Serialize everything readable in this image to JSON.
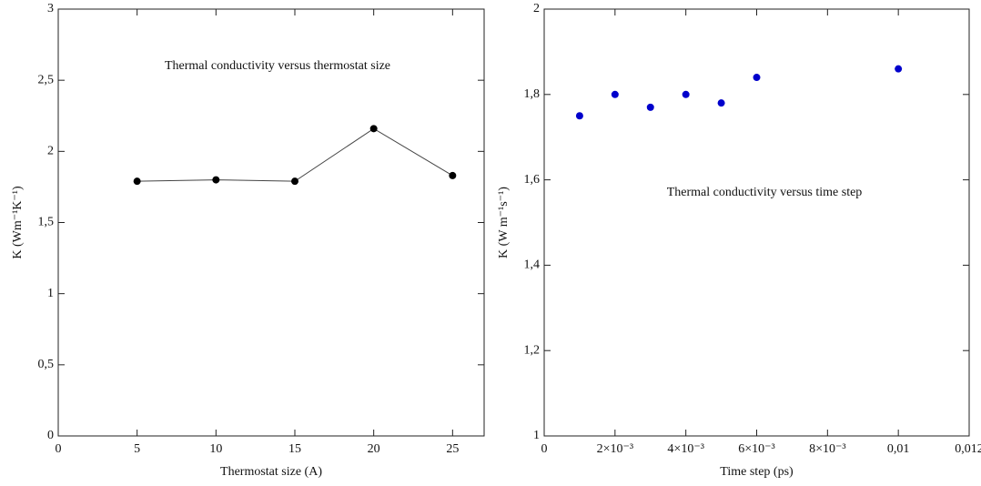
{
  "chart_data": [
    {
      "type": "line",
      "annotation": "Thermal conductivity versus thermostat size",
      "x_label": "Thermostat size (A)",
      "y_label": "K (Wm⁻¹K⁻¹)",
      "x": [
        5,
        10,
        15,
        20,
        25
      ],
      "values": [
        1.79,
        1.8,
        1.79,
        2.16,
        1.83
      ],
      "color": "#000000",
      "xlim": [
        0,
        27
      ],
      "xticks": [
        0,
        5,
        10,
        15,
        20,
        25
      ],
      "ylim": [
        0,
        3
      ],
      "yticks": [
        0,
        {
          "value": 0.5,
          "label": "0,5"
        },
        1,
        {
          "value": 1.5,
          "label": "1,5"
        },
        2,
        {
          "value": 2.5,
          "label": "2,5"
        },
        3
      ]
    },
    {
      "type": "scatter",
      "annotation": "Thermal conductivity versus time step",
      "x_label": "Time step (ps)",
      "y_label": "K (W m⁻¹s⁻¹)",
      "x": [
        0.001,
        0.002,
        0.003,
        0.004,
        0.005,
        0.006,
        0.01
      ],
      "values": [
        1.75,
        1.8,
        1.77,
        1.8,
        1.78,
        1.84,
        1.86
      ],
      "color": "#0000cc",
      "xlim": [
        0,
        0.012
      ],
      "xticks": [
        0,
        {
          "value": 0.002,
          "label": "2×10⁻³"
        },
        {
          "value": 0.004,
          "label": "4×10⁻³"
        },
        {
          "value": 0.006,
          "label": "6×10⁻³"
        },
        {
          "value": 0.008,
          "label": "8×10⁻³"
        },
        {
          "value": 0.01,
          "label": "0,01"
        },
        {
          "value": 0.012,
          "label": "0,012"
        }
      ],
      "ylim": [
        1,
        2
      ],
      "yticks": [
        1,
        {
          "value": 1.2,
          "label": "1,2"
        },
        {
          "value": 1.4,
          "label": "1,4"
        },
        {
          "value": 1.6,
          "label": "1,6"
        },
        {
          "value": 1.8,
          "label": "1,8"
        },
        2
      ]
    }
  ]
}
